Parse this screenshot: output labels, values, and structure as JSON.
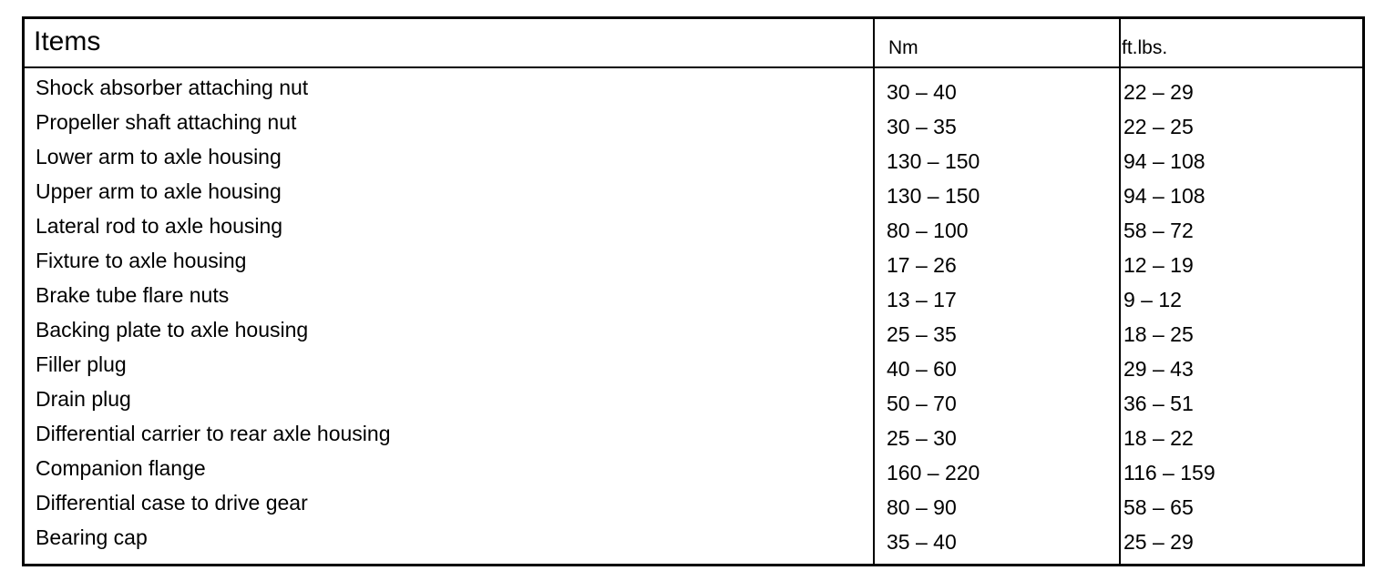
{
  "table": {
    "headers": {
      "items": "Items",
      "nm": "Nm",
      "ftlbs": "ft.lbs."
    },
    "rows": [
      {
        "item": "Shock absorber attaching nut",
        "nm": "30 – 40",
        "ftlbs": "22 – 29"
      },
      {
        "item": "Propeller shaft attaching nut",
        "nm": "30 – 35",
        "ftlbs": "22 – 25"
      },
      {
        "item": "Lower arm to axle housing",
        "nm": "130 – 150",
        "ftlbs": "94 – 108"
      },
      {
        "item": "Upper arm to axle housing",
        "nm": "130 – 150",
        "ftlbs": "94 – 108"
      },
      {
        "item": "Lateral rod to axle housing",
        "nm": "80 – 100",
        "ftlbs": "58 – 72"
      },
      {
        "item": "Fixture to axle housing",
        "nm": "17 – 26",
        "ftlbs": "12 – 19"
      },
      {
        "item": "Brake tube flare nuts",
        "nm": "13 – 17",
        "ftlbs": "9 – 12"
      },
      {
        "item": "Backing plate to axle housing",
        "nm": "25 – 35",
        "ftlbs": "18 – 25"
      },
      {
        "item": "Filler plug",
        "nm": "40 – 60",
        "ftlbs": "29 – 43"
      },
      {
        "item": "Drain plug",
        "nm": "50 – 70",
        "ftlbs": "36 – 51"
      },
      {
        "item": "Differential carrier to rear axle housing",
        "nm": "25 – 30",
        "ftlbs": "18 – 22"
      },
      {
        "item": "Companion flange",
        "nm": "160 – 220",
        "ftlbs": "116 – 159"
      },
      {
        "item": "Differential case to drive gear",
        "nm": "80 – 90",
        "ftlbs": "58 – 65"
      },
      {
        "item": "Bearing cap",
        "nm": "35 – 40",
        "ftlbs": "25 – 29"
      }
    ]
  }
}
